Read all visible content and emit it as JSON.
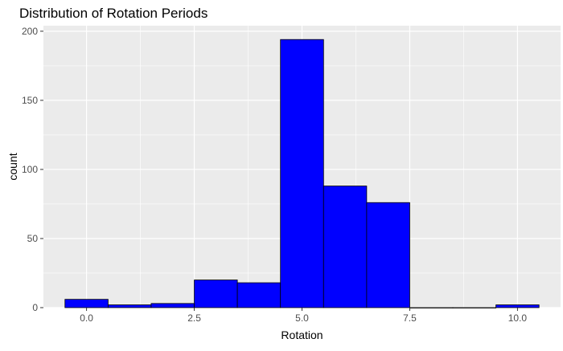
{
  "chart_data": {
    "type": "bar",
    "title": "Distribution of Rotation Periods",
    "xlabel": "Rotation",
    "ylabel": "count",
    "bin_width": 1,
    "bins": [
      {
        "x": 0,
        "count": 6
      },
      {
        "x": 1,
        "count": 2
      },
      {
        "x": 2,
        "count": 3
      },
      {
        "x": 3,
        "count": 20
      },
      {
        "x": 4,
        "count": 18
      },
      {
        "x": 5,
        "count": 194
      },
      {
        "x": 6,
        "count": 88
      },
      {
        "x": 7,
        "count": 76
      },
      {
        "x": 8,
        "count": 0
      },
      {
        "x": 9,
        "count": 0
      },
      {
        "x": 10,
        "count": 2
      }
    ],
    "xlim": [
      -1,
      11
    ],
    "ylim": [
      0,
      204
    ],
    "x_ticks": [
      0,
      2.5,
      5,
      7.5,
      10
    ],
    "x_tick_labels": [
      "0.0",
      "2.5",
      "5.0",
      "7.5",
      "10.0"
    ],
    "y_ticks": [
      0,
      50,
      100,
      150,
      200
    ],
    "y_tick_labels": [
      "0",
      "50",
      "100",
      "150",
      "200"
    ],
    "grid": true,
    "colors": {
      "bar_fill": "#0000ff",
      "bar_outline": "#000000",
      "panel_background": "#ebebeb",
      "grid_major": "#ffffff",
      "tick_text": "#4d4d4d"
    }
  }
}
